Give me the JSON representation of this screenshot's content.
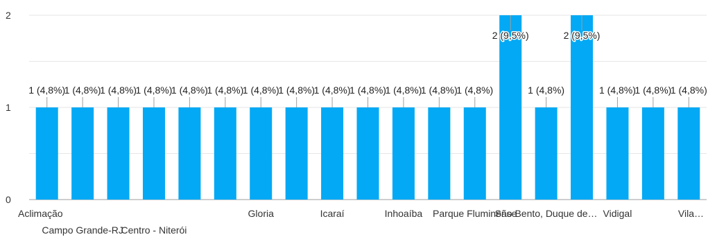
{
  "chart_data": {
    "type": "bar",
    "categories": [
      "Aclimação",
      "Campo Grande-RJ",
      "",
      "Centro - Niterói",
      "",
      "",
      "Gloria",
      "",
      "Icaraí",
      "",
      "Inhoaíba",
      "",
      "Parque Fluminense",
      "",
      "São Bento, Duque de…",
      "",
      "Vidigal",
      "",
      "Vila…"
    ],
    "values": [
      1,
      1,
      1,
      1,
      1,
      1,
      1,
      1,
      1,
      1,
      1,
      1,
      1,
      2,
      1,
      2,
      1,
      1,
      1
    ],
    "data_labels": [
      "1 (4,8%)",
      "1 (4,8%)",
      "1 (4,8%)",
      "1 (4,8%)",
      "1 (4,8%)",
      "1 (4,8%)",
      "1 (4,8%)",
      "1 (4,8%)",
      "1 (4,8%)",
      "1 (4,8%)",
      "1 (4,8%)",
      "1 (4,8%)",
      "1 (4,8%)",
      "2 (9,5%)",
      "1 (4,8%)",
      "2 (9,5%)",
      "1 (4,8%)",
      "1 (4,8%)",
      "1 (4,8%)"
    ],
    "yticks": [
      0,
      1,
      2
    ],
    "ylim": [
      0,
      2
    ],
    "title": "",
    "xlabel": "",
    "ylabel": "",
    "grid": true,
    "bar_color": "#03a9f4"
  }
}
